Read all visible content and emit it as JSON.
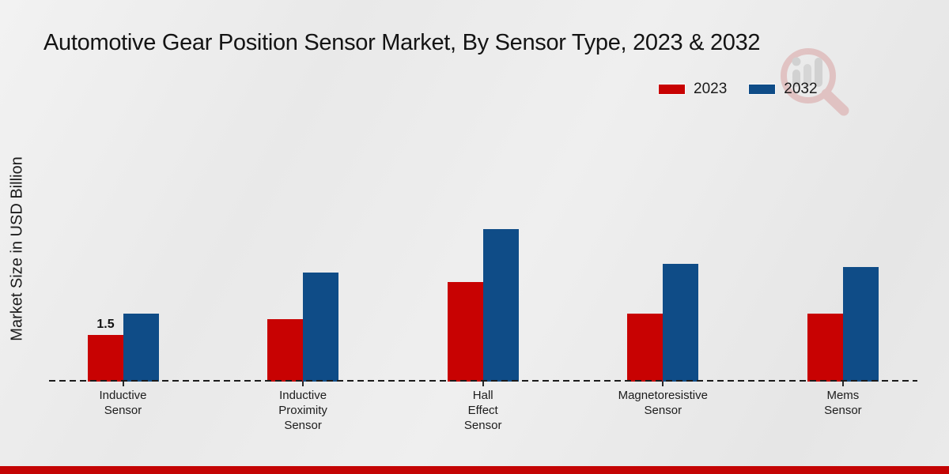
{
  "title": "Automotive Gear Position Sensor Market, By Sensor Type, 2023 & 2032",
  "y_axis_label": "Market Size in USD Billion",
  "legend": {
    "items": [
      {
        "label": "2023",
        "color": "#c80202"
      },
      {
        "label": "2032",
        "color": "#0f4c87"
      }
    ]
  },
  "chart_data": {
    "type": "bar",
    "title": "Automotive Gear Position Sensor Market, By Sensor Type, 2023 & 2032",
    "categories": [
      "Inductive Sensor",
      "Inductive Proximity Sensor",
      "Hall Effect Sensor",
      "Magnetoresistive Sensor",
      "Mems Sensor"
    ],
    "category_display_lines": [
      [
        "Inductive",
        "Sensor"
      ],
      [
        "Inductive",
        "Proximity",
        "Sensor"
      ],
      [
        "Hall",
        "Effect",
        "Sensor"
      ],
      [
        "Magnetoresistive",
        "Sensor"
      ],
      [
        "Mems",
        "Sensor"
      ]
    ],
    "series": [
      {
        "name": "2023",
        "color": "#c80202",
        "values": [
          1.5,
          2.0,
          3.2,
          2.2,
          2.2
        ]
      },
      {
        "name": "2032",
        "color": "#0f4c87",
        "values": [
          2.2,
          3.5,
          4.9,
          3.8,
          3.7
        ]
      }
    ],
    "shown_data_labels": [
      {
        "series": "2023",
        "category": "Inductive Sensor",
        "text": "1.5"
      }
    ],
    "xlabel": "",
    "ylabel": "Market Size in USD Billion",
    "ylim": [
      0,
      5.5
    ],
    "grid": false,
    "legend_position": "top-right",
    "x_axis_style": "dashed"
  },
  "watermark": {
    "name": "magnifier-analytics-logo",
    "ring_color": "#d9a3a3",
    "bars_color": "#bdbdbd"
  },
  "footer": {
    "accent_color": "#c40404"
  }
}
